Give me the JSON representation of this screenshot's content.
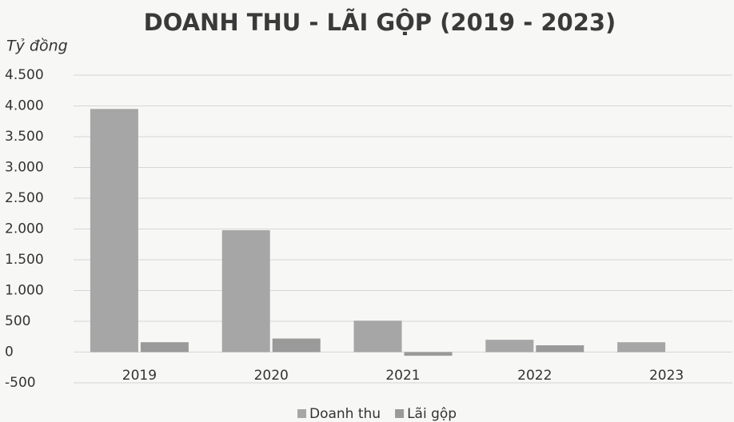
{
  "chart_data": {
    "type": "bar",
    "title": "DOANH THU - LÃI GỘP (2019 - 2023)",
    "y_label": "Tỷ đồng",
    "categories": [
      "2019",
      "2020",
      "2021",
      "2022",
      "2023"
    ],
    "series": [
      {
        "name": "Doanh thu",
        "color": "#a6a6a6",
        "values": [
          3950,
          1980,
          510,
          200,
          160
        ]
      },
      {
        "name": "Lãi gộp",
        "color": "#9a9a9a",
        "values": [
          160,
          220,
          -60,
          110,
          0
        ]
      }
    ],
    "ylim": [
      -500,
      4500
    ],
    "yticks": [
      {
        "value": 4500,
        "label": "4.500"
      },
      {
        "value": 4000,
        "label": "4.000"
      },
      {
        "value": 3500,
        "label": "3.500"
      },
      {
        "value": 3000,
        "label": "3.000"
      },
      {
        "value": 2500,
        "label": "2.500"
      },
      {
        "value": 2000,
        "label": "2.000"
      },
      {
        "value": 1500,
        "label": "1.500"
      },
      {
        "value": 1000,
        "label": "1.000"
      },
      500,
      0,
      -500
    ],
    "grid": true,
    "legend": "bottom"
  }
}
